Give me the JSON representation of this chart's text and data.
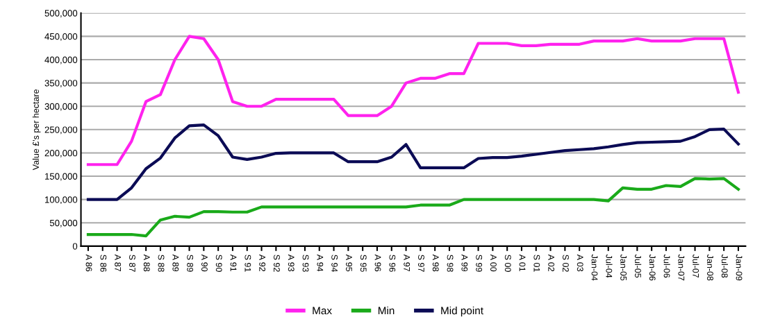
{
  "chart_data": {
    "type": "line",
    "ylabel": "Value £'s per hectare",
    "categories": [
      "A 86",
      "S 86",
      "A 87",
      "S 87",
      "A 88",
      "S 88",
      "A 89",
      "S 89",
      "A 90",
      "S 90",
      "A 91",
      "S 91",
      "A 92",
      "S 92",
      "A 93",
      "S 93",
      "A 94",
      "S 94",
      "A 95",
      "S 95",
      "A 96",
      "S 96",
      "A 97",
      "S 97",
      "A 98",
      "S 98",
      "A 99",
      "S 99",
      "A 00",
      "S 00",
      "A 01",
      "S 01",
      "A 02",
      "S 02",
      "A 03",
      "Jan-04",
      "Jul-04",
      "Jan-05",
      "Jul-05",
      "Jan-06",
      "Jul-06",
      "Jan-07",
      "Jul-07",
      "Jan-08",
      "Jul-08",
      "Jan-09"
    ],
    "series": [
      {
        "name": "Max",
        "color": "#ff22ee",
        "values": [
          175000,
          175000,
          175000,
          225000,
          310000,
          325000,
          400000,
          450000,
          445000,
          400000,
          310000,
          300000,
          300000,
          315000,
          315000,
          315000,
          315000,
          315000,
          280000,
          280000,
          280000,
          300000,
          350000,
          360000,
          360000,
          370000,
          370000,
          435000,
          435000,
          435000,
          430000,
          430000,
          433000,
          433000,
          433000,
          440000,
          440000,
          440000,
          445000,
          440000,
          440000,
          440000,
          445000,
          445000,
          445000,
          330000
        ]
      },
      {
        "name": "Min",
        "color": "#1aaa1a",
        "values": [
          25000,
          25000,
          25000,
          25000,
          22000,
          56000,
          64000,
          62000,
          74000,
          74000,
          73000,
          73000,
          84000,
          84000,
          84000,
          84000,
          84000,
          84000,
          84000,
          84000,
          84000,
          84000,
          84000,
          88000,
          88000,
          88000,
          100000,
          100000,
          100000,
          100000,
          100000,
          100000,
          100000,
          100000,
          100000,
          100000,
          97000,
          125000,
          122000,
          122000,
          130000,
          128000,
          145000,
          144000,
          145000,
          122000
        ]
      },
      {
        "name": "Mid point",
        "color": "#0b0b55",
        "values": [
          100000,
          100000,
          100000,
          125000,
          166000,
          189000,
          232000,
          258000,
          260000,
          237000,
          191000,
          186000,
          191000,
          199000,
          200000,
          200000,
          200000,
          200000,
          181000,
          181000,
          181000,
          191000,
          218000,
          168000,
          168000,
          168000,
          168000,
          188000,
          190000,
          190000,
          193000,
          197000,
          201000,
          205000,
          207000,
          209000,
          213000,
          218000,
          222000,
          223000,
          224000,
          225000,
          235000,
          250000,
          251000,
          219000
        ]
      }
    ],
    "ylim": [
      0,
      500000
    ],
    "yticks": [
      {
        "value": 0,
        "label": "0"
      },
      {
        "value": 50000,
        "label": "50,000"
      },
      {
        "value": 100000,
        "label": "100,000"
      },
      {
        "value": 150000,
        "label": "150,000"
      },
      {
        "value": 200000,
        "label": "200,000"
      },
      {
        "value": 250000,
        "label": "250,000"
      },
      {
        "value": 300000,
        "label": "300,000"
      },
      {
        "value": 350000,
        "label": "350,000"
      },
      {
        "value": 400000,
        "label": "400,000"
      },
      {
        "value": 450000,
        "label": "450,000"
      },
      {
        "value": 500000,
        "label": "500,000"
      }
    ],
    "grid": "y",
    "legend": "bottom",
    "marker": "none",
    "line_style": "solid"
  }
}
